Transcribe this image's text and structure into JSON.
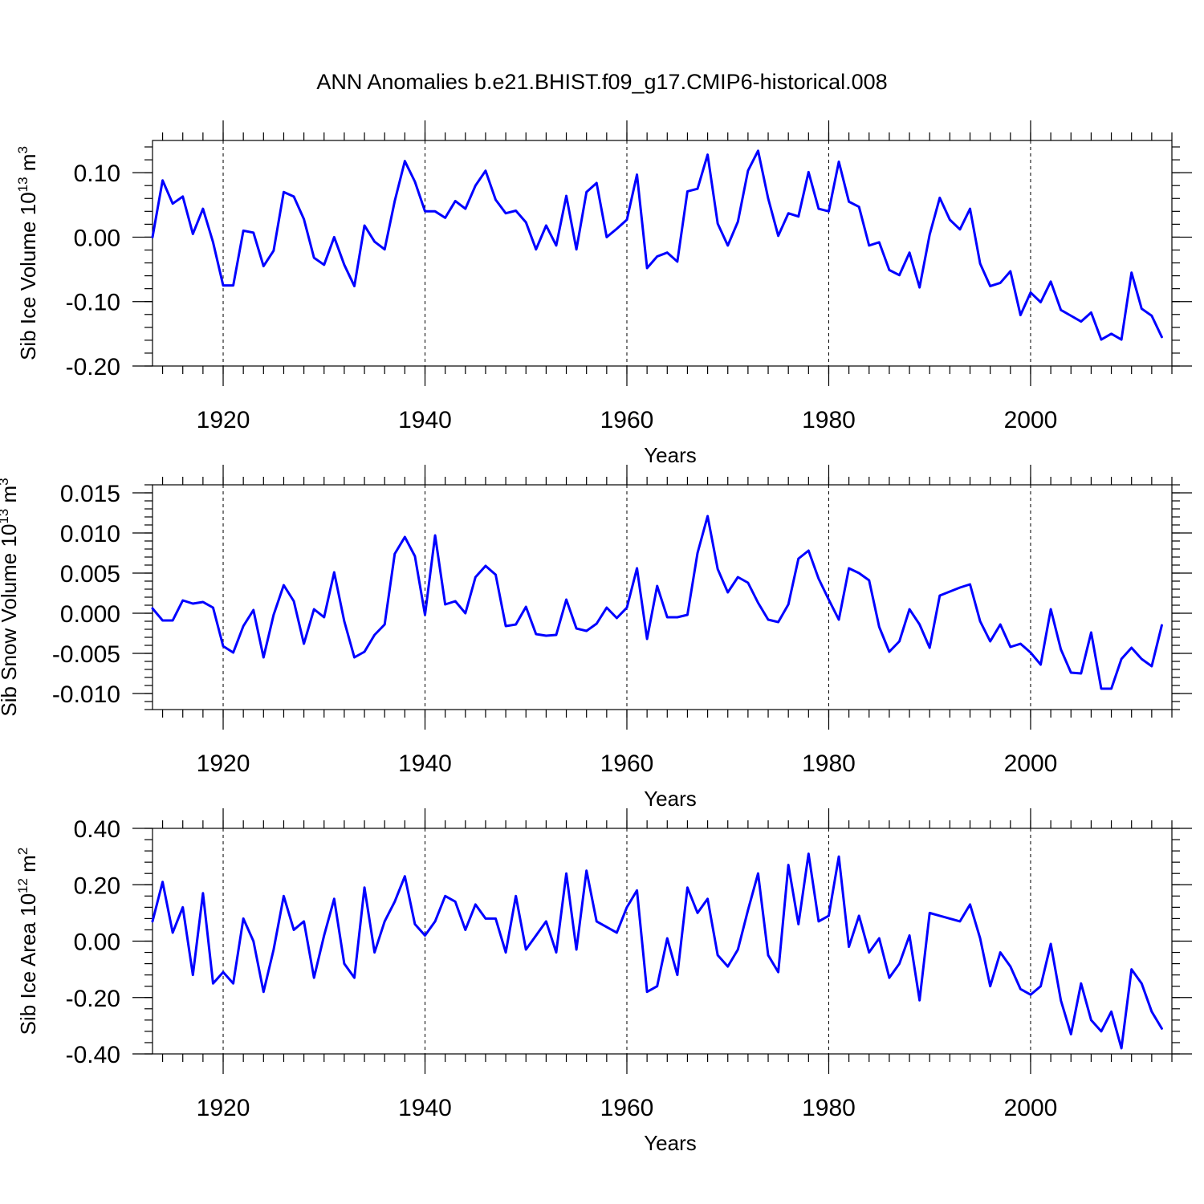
{
  "figure_title": "ANN Anomalies b.e21.BHIST.f09_g17.CMIP6-historical.008",
  "colors": {
    "series": "#0000ff",
    "axes": "#000000",
    "background": "#ffffff"
  },
  "chart_data": [
    {
      "type": "line",
      "title": "",
      "xlabel": "Years",
      "ylabel": {
        "text": "Sib Ice Volume 10",
        "sup": "13",
        "unit": " m",
        "unit_sup": "3"
      },
      "xlim": [
        1913,
        2014
      ],
      "ylim": [
        -0.2,
        0.15
      ],
      "x_ticks": [
        1920,
        1940,
        1960,
        1980,
        2000
      ],
      "x_tick_labels": [
        "1920",
        "1940",
        "1960",
        "1980",
        "2000"
      ],
      "y_ticks": [
        -0.2,
        -0.1,
        0.0,
        0.1
      ],
      "y_tick_labels": [
        "-0.20",
        "-0.10",
        "0.00",
        "0.10"
      ],
      "y_minor_step": 0.02,
      "x_minor_step": 2,
      "grid_x": true,
      "x_start": 1913,
      "series": [
        {
          "name": "Sib Ice Volume",
          "values": [
            0.0,
            0.088,
            0.052,
            0.063,
            0.005,
            0.044,
            -0.008,
            -0.075,
            -0.075,
            0.01,
            0.007,
            -0.045,
            -0.021,
            0.07,
            0.063,
            0.028,
            -0.032,
            -0.043,
            0.0,
            -0.043,
            -0.076,
            0.018,
            -0.007,
            -0.019,
            0.056,
            0.118,
            0.086,
            0.04,
            0.04,
            0.03,
            0.056,
            0.044,
            0.08,
            0.103,
            0.058,
            0.037,
            0.041,
            0.023,
            -0.019,
            0.018,
            -0.013,
            0.064,
            -0.019,
            0.07,
            0.084,
            0.0,
            0.013,
            0.027,
            0.097,
            -0.048,
            -0.03,
            -0.024,
            -0.038,
            0.071,
            0.075,
            0.128,
            0.021,
            -0.013,
            0.024,
            0.103,
            0.134,
            0.06,
            0.002,
            0.037,
            0.032,
            0.101,
            0.044,
            0.04,
            0.117,
            0.055,
            0.047,
            -0.013,
            -0.008,
            -0.051,
            -0.059,
            -0.024,
            -0.078,
            0.004,
            0.061,
            0.027,
            0.012,
            0.044,
            -0.041,
            -0.076,
            -0.071,
            -0.053,
            -0.121,
            -0.086,
            -0.101,
            -0.069,
            -0.113,
            -0.122,
            -0.131,
            -0.117,
            -0.159,
            -0.15,
            -0.159,
            -0.055,
            -0.111,
            -0.122,
            -0.155
          ]
        }
      ]
    },
    {
      "type": "line",
      "title": "",
      "xlabel": "Years",
      "ylabel": {
        "text": "Sib Snow Volume 10",
        "sup": "13",
        "unit": " m",
        "unit_sup": "3"
      },
      "xlim": [
        1913,
        2014
      ],
      "ylim": [
        -0.012,
        0.016
      ],
      "x_ticks": [
        1920,
        1940,
        1960,
        1980,
        2000
      ],
      "x_tick_labels": [
        "1920",
        "1940",
        "1960",
        "1980",
        "2000"
      ],
      "y_ticks": [
        -0.01,
        -0.005,
        0.0,
        0.005,
        0.01,
        0.015
      ],
      "y_tick_labels": [
        "-0.010",
        "-0.005",
        "0.000",
        "0.005",
        "0.010",
        "0.015"
      ],
      "y_minor_step": 0.001,
      "x_minor_step": 2,
      "grid_x": true,
      "x_start": 1913,
      "series": [
        {
          "name": "Sib Snow Volume",
          "values": [
            0.0006,
            -0.0009,
            -0.0009,
            0.0016,
            0.0012,
            0.0014,
            0.0007,
            -0.0041,
            -0.0049,
            -0.0016,
            0.0004,
            -0.0055,
            -0.0002,
            0.0035,
            0.0015,
            -0.0038,
            0.0005,
            -0.0005,
            0.0051,
            -0.001,
            -0.0055,
            -0.0048,
            -0.0027,
            -0.0014,
            0.0074,
            0.0095,
            0.0071,
            -0.0002,
            0.0097,
            0.0011,
            0.0015,
            0.0,
            0.0045,
            0.0059,
            0.0048,
            -0.0016,
            -0.0014,
            0.0008,
            -0.0026,
            -0.0028,
            -0.0027,
            0.0017,
            -0.0019,
            -0.0022,
            -0.0013,
            0.0007,
            -0.0006,
            0.0007,
            0.0056,
            -0.0032,
            0.0034,
            -0.0005,
            -0.0005,
            -0.0002,
            0.0075,
            0.0121,
            0.0055,
            0.0026,
            0.0045,
            0.0038,
            0.0013,
            -0.0008,
            -0.0011,
            0.0011,
            0.0068,
            0.0078,
            0.0043,
            0.0017,
            -0.0008,
            0.0056,
            0.005,
            0.0041,
            -0.0017,
            -0.0048,
            -0.0035,
            0.0005,
            -0.0014,
            -0.0043,
            0.0022,
            0.0027,
            0.0032,
            0.0036,
            -0.001,
            -0.0035,
            -0.0014,
            -0.0042,
            -0.0038,
            -0.0049,
            -0.0064,
            0.0005,
            -0.0045,
            -0.0074,
            -0.0075,
            -0.0024,
            -0.0094,
            -0.0094,
            -0.0057,
            -0.0043,
            -0.0057,
            -0.0066,
            -0.0015
          ]
        }
      ]
    },
    {
      "type": "line",
      "title": "",
      "xlabel": "Years",
      "ylabel": {
        "text": "Sib Ice Area 10",
        "sup": "12",
        "unit": " m",
        "unit_sup": "2"
      },
      "xlim": [
        1913,
        2014
      ],
      "ylim": [
        -0.4,
        0.4
      ],
      "x_ticks": [
        1920,
        1940,
        1960,
        1980,
        2000
      ],
      "x_tick_labels": [
        "1920",
        "1940",
        "1960",
        "1980",
        "2000"
      ],
      "y_ticks": [
        -0.4,
        -0.2,
        0.0,
        0.2,
        0.4
      ],
      "y_tick_labels": [
        "-0.40",
        "-0.20",
        "0.00",
        "0.20",
        "0.40"
      ],
      "y_minor_step": 0.04,
      "x_minor_step": 2,
      "grid_x": true,
      "x_start": 1913,
      "series": [
        {
          "name": "Sib Ice Area",
          "values": [
            0.07,
            0.21,
            0.03,
            0.12,
            -0.12,
            0.17,
            -0.15,
            -0.11,
            -0.15,
            0.08,
            0.0,
            -0.18,
            -0.03,
            0.16,
            0.04,
            0.07,
            -0.13,
            0.02,
            0.15,
            -0.08,
            -0.13,
            0.19,
            -0.04,
            0.07,
            0.14,
            0.23,
            0.06,
            0.02,
            0.07,
            0.16,
            0.14,
            0.04,
            0.13,
            0.08,
            0.08,
            -0.04,
            0.16,
            -0.03,
            0.02,
            0.07,
            -0.04,
            0.24,
            -0.03,
            0.25,
            0.07,
            0.05,
            0.03,
            0.12,
            0.18,
            -0.18,
            -0.16,
            0.01,
            -0.12,
            0.19,
            0.1,
            0.15,
            -0.05,
            -0.09,
            -0.03,
            0.11,
            0.24,
            -0.05,
            -0.11,
            0.27,
            0.06,
            0.31,
            0.07,
            0.09,
            0.3,
            -0.02,
            0.09,
            -0.04,
            0.01,
            -0.13,
            -0.08,
            0.02,
            -0.21,
            0.1,
            0.09,
            0.08,
            0.07,
            0.13,
            0.01,
            -0.16,
            -0.04,
            -0.09,
            -0.17,
            -0.19,
            -0.16,
            -0.01,
            -0.21,
            -0.33,
            -0.15,
            -0.28,
            -0.32,
            -0.25,
            -0.38,
            -0.1,
            -0.15,
            -0.25,
            -0.31
          ]
        }
      ]
    }
  ]
}
